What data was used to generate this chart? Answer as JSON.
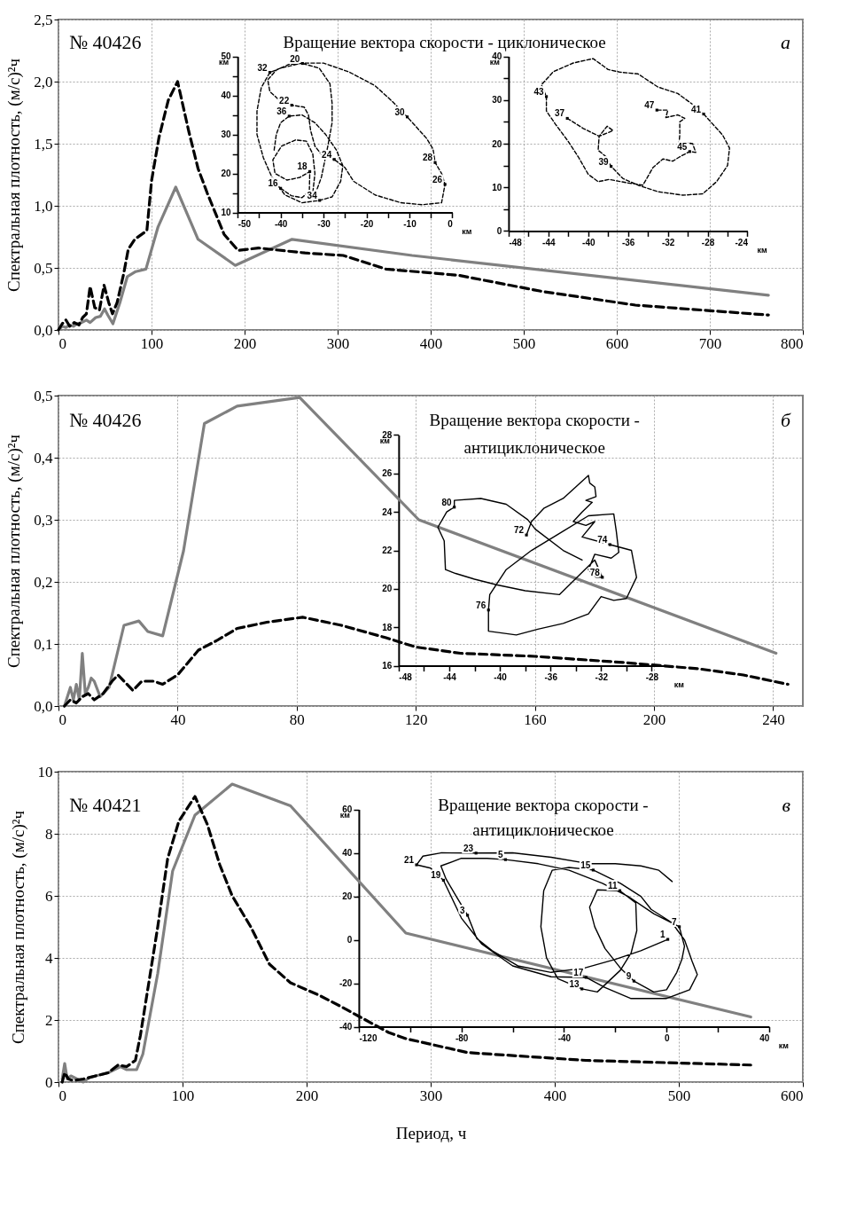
{
  "chart_data": [
    {
      "type": "line",
      "xlim": [
        0,
        800
      ],
      "xticks": [
        0,
        100,
        200,
        300,
        400,
        500,
        600,
        700,
        800
      ],
      "ylim": [
        0,
        2.5
      ],
      "yticks": [
        {
          "value": 0,
          "label": "0,0"
        },
        {
          "value": 0.5,
          "label": "0,5"
        },
        {
          "value": 1,
          "label": "1,0"
        },
        {
          "value": 1.5,
          "label": "1,5"
        },
        {
          "value": 2,
          "label": "2,0"
        },
        {
          "value": 2.5,
          "label": "2,5"
        }
      ],
      "ylabel": "Спектральная плотность, (м/с)²ч",
      "grid": true,
      "annotations": [
        "№ 40426",
        "Вращение вектора скорости - циклоническое",
        "а"
      ],
      "series": [
        {
          "color": "#808080",
          "x": [
            0,
            4,
            8,
            12,
            16,
            20,
            25,
            30,
            34,
            40,
            45,
            49.5,
            53,
            58.5,
            66,
            74,
            83,
            94,
            107,
            126,
            150,
            190,
            251,
            380,
            763
          ],
          "values": [
            0,
            0.03,
            0.02,
            0.04,
            0.03,
            0.05,
            0.06,
            0.08,
            0.06,
            0.1,
            0.11,
            0.17,
            0.12,
            0.05,
            0.22,
            0.43,
            0.47,
            0.49,
            0.83,
            1.15,
            0.73,
            0.52,
            0.73,
            0.6,
            0.28
          ]
        },
        {
          "color": "#000000",
          "line_style": "dashed",
          "x": [
            0,
            4,
            8,
            12,
            17,
            22,
            26,
            30,
            34,
            39,
            44,
            49,
            54,
            58,
            63,
            70,
            75,
            82,
            95,
            100,
            108,
            118,
            128,
            140,
            150,
            160,
            178,
            193,
            215,
            265,
            306,
            352,
            430,
            520,
            620,
            763
          ],
          "values": [
            0,
            0.05,
            0.08,
            0.03,
            0.06,
            0.04,
            0.1,
            0.13,
            0.35,
            0.18,
            0.16,
            0.36,
            0.22,
            0.13,
            0.22,
            0.45,
            0.65,
            0.73,
            0.8,
            1.2,
            1.55,
            1.85,
            2.0,
            1.6,
            1.3,
            1.1,
            0.77,
            0.64,
            0.66,
            0.62,
            0.6,
            0.49,
            0.44,
            0.31,
            0.2,
            0.12
          ]
        }
      ]
    },
    {
      "type": "line",
      "xlim": [
        -50,
        0
      ],
      "xticks": [
        -50,
        {
          "value": -45,
          "label": null
        },
        -40,
        {
          "value": -35,
          "label": null
        },
        -30,
        {
          "value": -25,
          "label": null
        },
        -20,
        {
          "value": -15,
          "label": null
        },
        -10,
        {
          "value": -5,
          "label": null
        },
        0
      ],
      "ylim": [
        10,
        50
      ],
      "yticks": [
        10,
        {
          "value": 15,
          "label": null
        },
        20,
        {
          "value": 25,
          "label": null
        },
        30,
        {
          "value": 35,
          "label": null
        },
        40,
        {
          "value": 45,
          "label": null
        },
        50
      ],
      "xlabel": "км",
      "ylabel": "км",
      "line_style": "dashed",
      "annotations": [
        {
          "text": "16",
          "x": -40,
          "y": 16.2
        },
        {
          "text": "18",
          "x": -33.2,
          "y": 20.5
        },
        {
          "text": "20",
          "x": -34.9,
          "y": 48.2
        },
        {
          "text": "22",
          "x": -37.4,
          "y": 37.5
        },
        {
          "text": "24",
          "x": -27.5,
          "y": 23.6
        },
        {
          "text": "26",
          "x": -1.7,
          "y": 17.2
        },
        {
          "text": "28",
          "x": -4,
          "y": 22.8
        },
        {
          "text": "30",
          "x": -10.5,
          "y": 34.5
        },
        {
          "text": "32",
          "x": -42.5,
          "y": 45.9
        },
        {
          "text": "34",
          "x": -30.9,
          "y": 13.1
        },
        {
          "text": "36",
          "x": -38,
          "y": 34.7
        }
      ],
      "series": [
        {
          "color": "#000000",
          "x": [
            -40,
            -37.5,
            -35,
            -33.3,
            -33.2,
            -35.5,
            -38.5,
            -41.3,
            -41.8,
            -39.8,
            -36.5,
            -34,
            -32.5,
            -32,
            -32.5,
            -33,
            -32,
            -30.5,
            -29,
            -28,
            -28,
            -28.5,
            -31,
            -34.9,
            -38,
            -41,
            -43,
            -42.5,
            -40,
            -37.4,
            -34.5,
            -33.5,
            -33,
            -32,
            -30,
            -27.5,
            -25,
            -23,
            -18,
            -12,
            -7,
            -2.5,
            -1.7,
            -2.5,
            -4,
            -4.5,
            -6,
            -10.5,
            -14,
            -18,
            -24,
            -30,
            -35,
            -40,
            -42.5,
            -44.5,
            -45.5,
            -45.5,
            -44,
            -42,
            -39,
            -35,
            -30.9,
            -28,
            -26,
            -25.5,
            -27,
            -29.5,
            -32,
            -35,
            -38,
            -40,
            -41,
            -41.5
          ],
          "values": [
            16.2,
            14.3,
            13.8,
            15.5,
            20.5,
            19,
            18.3,
            20,
            23.5,
            27,
            28.6,
            28.3,
            25,
            20,
            15,
            13.5,
            14.5,
            19,
            27,
            33,
            38,
            43,
            47,
            48.2,
            48,
            46.5,
            44,
            41,
            38.5,
            37.5,
            37,
            35,
            31,
            27,
            24.2,
            23.6,
            21.5,
            18,
            14.5,
            12.5,
            12,
            12.5,
            17.2,
            20,
            22.8,
            26.3,
            29,
            34.5,
            38.5,
            42.5,
            46,
            48.3,
            48.3,
            47,
            45.9,
            42,
            36,
            30,
            24,
            19,
            14.5,
            12.5,
            13.1,
            14,
            18,
            22,
            26,
            30,
            33,
            35,
            34.7,
            33,
            30,
            26
          ]
        }
      ]
    },
    {
      "type": "line",
      "xlim": [
        -48,
        -24
      ],
      "xticks": [
        -48,
        {
          "value": -46,
          "label": null
        },
        -44,
        {
          "value": -42,
          "label": null
        },
        -40,
        {
          "value": -38,
          "label": null
        },
        -36,
        {
          "value": -34,
          "label": null
        },
        -32,
        {
          "value": -30,
          "label": null
        },
        -28,
        {
          "value": -26,
          "label": null
        },
        -24
      ],
      "ylim": [
        0,
        40
      ],
      "yticks": [
        0,
        {
          "value": 5,
          "label": null
        },
        10,
        {
          "value": 15,
          "label": null
        },
        20,
        {
          "value": 25,
          "label": null
        },
        30,
        {
          "value": 35,
          "label": null
        },
        40
      ],
      "xlabel": "км",
      "ylabel": "км",
      "line_style": "dashed",
      "annotations": [
        {
          "text": "37",
          "x": -42.1,
          "y": 25.8
        },
        {
          "text": "39",
          "x": -37.7,
          "y": 14.8
        },
        {
          "text": "41",
          "x": -28.4,
          "y": 26.8
        },
        {
          "text": "43",
          "x": -44.2,
          "y": 30.8
        },
        {
          "text": "45",
          "x": -29.8,
          "y": 18.2
        },
        {
          "text": "47",
          "x": -33.1,
          "y": 27.7
        }
      ],
      "series": [
        {
          "color": "#000000",
          "x": [
            -42.1,
            -40.5,
            -38.9,
            -38.1,
            -37.5,
            -38.9,
            -39,
            -38.2,
            -37.7,
            -36.5,
            -35,
            -33,
            -30.5,
            -28.5,
            -27.1,
            -26,
            -25.8,
            -26.5,
            -28.4,
            -29.5,
            -31,
            -33,
            -35,
            -36.8,
            -38,
            -39.5,
            -41.5,
            -43.5,
            -44.7,
            -44.2,
            -44.2,
            -43.3,
            -42,
            -41,
            -40,
            -39,
            -37.9,
            -36,
            -34.5,
            -33.5,
            -32.5,
            -31.5,
            -30.8,
            -29.8,
            -29.2,
            -29.5,
            -30.5,
            -30.9,
            -30.8,
            -30.8,
            -30.3,
            -31,
            -32.2,
            -32,
            -33.1
          ],
          "values": [
            25.8,
            23.5,
            21.7,
            24,
            23,
            21.7,
            18.5,
            17,
            14.8,
            12,
            10.5,
            9,
            8.2,
            8.5,
            11.3,
            15,
            19,
            22,
            26.8,
            29,
            31.5,
            33,
            36,
            36.4,
            37,
            39.5,
            38.5,
            36.5,
            33.5,
            30.8,
            27.5,
            24.5,
            20.5,
            17,
            13,
            11.3,
            11.8,
            11,
            10.5,
            14.5,
            16.5,
            16,
            17,
            18.2,
            18,
            20,
            20.4,
            19.5,
            22,
            25,
            25.8,
            26.6,
            26,
            27.7,
            27.7
          ]
        }
      ]
    },
    {
      "type": "line",
      "xlim": [
        0,
        250
      ],
      "xticks": [
        0,
        40,
        80,
        120,
        160,
        200,
        240
      ],
      "ylim": [
        0,
        0.5
      ],
      "yticks": [
        {
          "value": 0,
          "label": "0,0"
        },
        {
          "value": 0.1,
          "label": "0,1"
        },
        {
          "value": 0.2,
          "label": "0,2"
        },
        {
          "value": 0.3,
          "label": "0,3"
        },
        {
          "value": 0.4,
          "label": "0,4"
        },
        {
          "value": 0.5,
          "label": "0,5"
        }
      ],
      "ylabel": "Спектральная плотность, (м/с)²ч",
      "grid": true,
      "annotations": [
        "№ 40426",
        "Вращение вектора скорости -",
        "антициклоническое",
        "б"
      ],
      "series": [
        {
          "color": "#808080",
          "x": [
            2,
            4,
            5,
            6,
            7,
            8,
            9,
            10,
            11,
            12,
            14,
            17,
            20,
            22,
            27,
            30,
            35,
            42,
            49,
            60,
            81,
            121,
            241
          ],
          "values": [
            0,
            0.03,
            0.01,
            0.035,
            0.01,
            0.085,
            0.02,
            0.03,
            0.045,
            0.04,
            0.015,
            0.03,
            0.09,
            0.13,
            0.137,
            0.12,
            0.113,
            0.25,
            0.455,
            0.483,
            0.497,
            0.3,
            0.085
          ]
        },
        {
          "color": "#000000",
          "line_style": "dashed",
          "x": [
            2,
            4,
            6,
            8,
            10,
            12,
            15,
            18,
            20,
            22,
            25,
            28,
            32,
            35,
            40,
            47,
            53,
            60,
            70,
            82,
            95,
            110,
            120,
            135,
            160,
            190,
            215,
            230,
            245
          ],
          "values": [
            0,
            0.01,
            0.005,
            0.015,
            0.02,
            0.01,
            0.02,
            0.04,
            0.05,
            0.04,
            0.025,
            0.04,
            0.04,
            0.035,
            0.05,
            0.09,
            0.105,
            0.125,
            0.135,
            0.143,
            0.13,
            0.11,
            0.095,
            0.085,
            0.08,
            0.07,
            0.06,
            0.05,
            0.035
          ]
        }
      ]
    },
    {
      "type": "line",
      "xlim": [
        -48,
        -27
      ],
      "xticks": [
        -48,
        {
          "value": -46,
          "label": null
        },
        -44,
        {
          "value": -42,
          "label": null
        },
        -40,
        {
          "value": -38,
          "label": null
        },
        -36,
        {
          "value": -34,
          "label": null
        },
        -32,
        {
          "value": -30,
          "label": null
        },
        -28
      ],
      "ylim": [
        16,
        28
      ],
      "yticks": [
        16,
        18,
        20,
        22,
        24,
        26,
        28
      ],
      "xlabel": "км",
      "ylabel": "км",
      "line_style": "solid",
      "annotations": [
        {
          "text": "72",
          "x": -37.9,
          "y": 22.8
        },
        {
          "text": "74",
          "x": -31.3,
          "y": 22.3
        },
        {
          "text": "76",
          "x": -40.9,
          "y": 18.9
        },
        {
          "text": "78",
          "x": -31.9,
          "y": 20.6
        },
        {
          "text": "80",
          "x": -43.6,
          "y": 24.25
        }
      ],
      "series": [
        {
          "color": "#000000",
          "x": [
            -37.9,
            -37.5,
            -36.5,
            -35,
            -34,
            -33,
            -32.9,
            -32.5,
            -32.4,
            -33.2,
            -32.7,
            -33.5,
            -34.2,
            -33.2,
            -32.5,
            -33.5,
            -31.3,
            -29.6,
            -29.2,
            -30,
            -31,
            -32,
            -33,
            -35,
            -37,
            -38.7,
            -40.9,
            -40.9,
            -40.8,
            -39.5,
            -37.5,
            -35,
            -33,
            -31,
            -30.8,
            -30.6,
            -31.2,
            -32.5,
            -33,
            -32.4,
            -31.9,
            -32.5,
            -35.3,
            -38,
            -40.2,
            -42,
            -43.5,
            -44.3,
            -44.4,
            -44.9,
            -44.2,
            -43.6,
            -43.6,
            -41.5,
            -39.5,
            -37.8,
            -37.2,
            -35,
            -33.5
          ],
          "values": [
            22.8,
            23.5,
            24.2,
            24.7,
            25.3,
            25.9,
            25.5,
            25.3,
            24.8,
            24.6,
            24.5,
            24,
            23.5,
            23.3,
            23.5,
            22.7,
            22.3,
            22,
            20.6,
            19.5,
            19.4,
            19.6,
            18.7,
            18.2,
            17.9,
            17.6,
            17.8,
            18.9,
            19.7,
            21,
            22,
            23,
            23.8,
            23.9,
            23,
            21.9,
            21.6,
            21.8,
            21,
            20.6,
            20.6,
            21.5,
            19.7,
            19.9,
            20.2,
            20.5,
            20.8,
            21,
            22.5,
            23.2,
            24,
            24.25,
            24.6,
            24.7,
            24.4,
            23.6,
            23.1,
            22,
            21.5
          ]
        }
      ]
    },
    {
      "type": "line",
      "xlim": [
        0,
        600
      ],
      "xticks": [
        0,
        100,
        200,
        300,
        400,
        500,
        600
      ],
      "ylim": [
        0,
        10
      ],
      "yticks": [
        0,
        2,
        4,
        6,
        8,
        10
      ],
      "xlabel": "Период, ч",
      "ylabel": "Спектральная плотность, (м/с)²ч",
      "grid": true,
      "annotations": [
        "№ 40421",
        "Вращение вектора скорости -",
        "антициклоническое",
        "в"
      ],
      "series": [
        {
          "color": "#808080",
          "x": [
            3,
            5,
            7,
            10,
            15,
            20,
            25,
            30,
            40,
            50,
            55,
            63,
            68,
            80,
            92,
            110,
            140,
            187,
            280,
            558
          ],
          "values": [
            0.1,
            0.6,
            0.1,
            0.2,
            0.1,
            0,
            0.15,
            0.2,
            0.3,
            0.5,
            0.4,
            0.4,
            0.9,
            3.5,
            6.8,
            8.6,
            9.6,
            8.9,
            4.8,
            2.1
          ]
        },
        {
          "color": "#000000",
          "line_style": "dashed",
          "x": [
            3,
            5,
            8,
            12,
            20,
            30,
            40,
            48,
            55,
            62,
            66,
            72,
            80,
            88,
            97,
            110,
            120,
            130,
            140,
            155,
            170,
            187,
            210,
            227,
            243,
            266,
            280,
            330,
            425,
            558
          ],
          "values": [
            0,
            0.3,
            0.1,
            0.05,
            0.1,
            0.2,
            0.3,
            0.55,
            0.5,
            0.7,
            1.5,
            3.0,
            5.0,
            7.2,
            8.4,
            9.2,
            8.3,
            7.0,
            6.0,
            5.0,
            3.8,
            3.2,
            2.8,
            2.45,
            2.1,
            1.6,
            1.4,
            0.95,
            0.7,
            0.55
          ]
        }
      ]
    },
    {
      "type": "line",
      "xlim": [
        -120,
        40
      ],
      "xticks": [
        -120,
        {
          "value": -100,
          "label": null
        },
        -80,
        {
          "value": -60,
          "label": null
        },
        -40,
        {
          "value": -20,
          "label": null
        },
        0,
        {
          "value": 20,
          "label": null
        },
        40
      ],
      "ylim": [
        -40,
        60
      ],
      "yticks": [
        -40,
        -20,
        0,
        20,
        40,
        60
      ],
      "xlabel": "км",
      "ylabel": "км",
      "line_style": "solid",
      "annotations": [
        {
          "text": "1",
          "x": 0.5,
          "y": 0.2
        },
        {
          "text": "3",
          "x": -77.6,
          "y": 11.3
        },
        {
          "text": "5",
          "x": -62.8,
          "y": 36.9
        },
        {
          "text": "7",
          "x": 5,
          "y": 6
        },
        {
          "text": "9",
          "x": -12.7,
          "y": -19
        },
        {
          "text": "11",
          "x": -18.2,
          "y": 22.6
        },
        {
          "text": "13",
          "x": -33,
          "y": -22.6
        },
        {
          "text": "15",
          "x": -28.6,
          "y": 32.1
        },
        {
          "text": "17",
          "x": -31.4,
          "y": -17.3
        },
        {
          "text": "19",
          "x": -87,
          "y": 27.4
        },
        {
          "text": "21",
          "x": -97.5,
          "y": 34.5
        },
        {
          "text": "23",
          "x": -74.3,
          "y": 39.9
        }
      ],
      "series": [
        {
          "color": "#000000",
          "x": [
            0.5,
            -10,
            -20,
            -32,
            -45,
            -58,
            -68,
            -74,
            -77.6,
            -82,
            -86,
            -88,
            -80,
            -70,
            -62.8,
            -50,
            -38,
            -25,
            -15,
            -5,
            5,
            7,
            6,
            4,
            0,
            -5,
            -12.7,
            -18,
            -24,
            -28,
            -30,
            -27,
            -18.2,
            -12,
            -11.6,
            -13.8,
            -18,
            -27,
            -33,
            -42.4,
            -46.8,
            -49,
            -47.9,
            -44.6,
            -38,
            -28.6,
            -18,
            -10,
            -6,
            2,
            7,
            10,
            12,
            9,
            0,
            -14,
            -24,
            -31.4,
            -45,
            -60,
            -72,
            -80,
            -87,
            -92,
            -97.5,
            -95,
            -88,
            -74.3,
            -60,
            -45,
            -30,
            -20,
            -10,
            -3,
            2.2
          ],
          "values": [
            0.2,
            -5,
            -9,
            -13,
            -15,
            -12,
            -5,
            0.6,
            11.3,
            20,
            28,
            34,
            37.5,
            37.5,
            36.9,
            35,
            32,
            26,
            20,
            12,
            6,
            -3,
            -9,
            -15,
            -23,
            -24,
            -19,
            -13,
            -4,
            6,
            15,
            23,
            22.6,
            17,
            4.2,
            -6,
            -14,
            -24,
            -22.6,
            -17.9,
            -8.3,
            6,
            22.6,
            32,
            33.3,
            32.1,
            26,
            20,
            14,
            8,
            0,
            -10,
            -16,
            -23,
            -27,
            -27,
            -22,
            -17.3,
            -17,
            -12,
            -2,
            10,
            27.4,
            33,
            34.5,
            38.5,
            40,
            39.9,
            40,
            38,
            35,
            35,
            34,
            32,
            26.8
          ]
        }
      ]
    }
  ]
}
